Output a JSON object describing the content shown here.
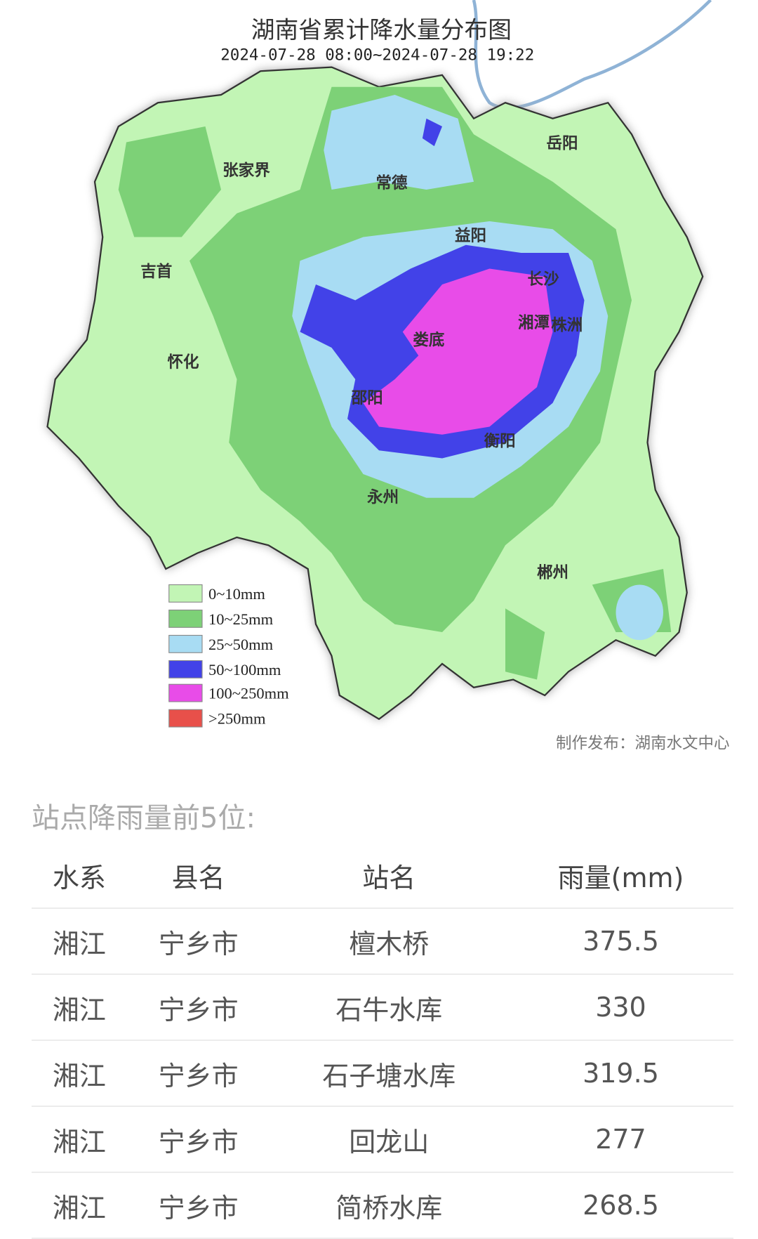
{
  "map": {
    "title": "湖南省累计降水量分布图",
    "time_range": "2024-07-28 08:00~2024-07-28 19:22",
    "cities": [
      "岳阳",
      "张家界",
      "常德",
      "益阳",
      "吉首",
      "长沙",
      "湘潭",
      "株洲",
      "娄底",
      "怀化",
      "邵阳",
      "衡阳",
      "永州",
      "郴州"
    ],
    "legend": [
      {
        "label": "0~10mm",
        "color": "#c2f5b5"
      },
      {
        "label": "10~25mm",
        "color": "#7dd177"
      },
      {
        "label": "25~50mm",
        "color": "#a8dcf3"
      },
      {
        "label": "50~100mm",
        "color": "#4242e8"
      },
      {
        "label": "100~250mm",
        "color": "#e84ce8"
      },
      {
        "label": ">250mm",
        "color": "#e8504a"
      }
    ],
    "credit": "制作发布：湖南水文中心"
  },
  "ranking": {
    "title": "站点降雨量前5位:",
    "columns": [
      "水系",
      "县名",
      "站名",
      "雨量(mm)"
    ],
    "rows": [
      [
        "湘江",
        "宁乡市",
        "檀木桥",
        "375.5"
      ],
      [
        "湘江",
        "宁乡市",
        "石牛水库",
        "330"
      ],
      [
        "湘江",
        "宁乡市",
        "石子塘水库",
        "319.5"
      ],
      [
        "湘江",
        "宁乡市",
        "回龙山",
        "277"
      ],
      [
        "湘江",
        "宁乡市",
        "简桥水库",
        "268.5"
      ]
    ]
  }
}
